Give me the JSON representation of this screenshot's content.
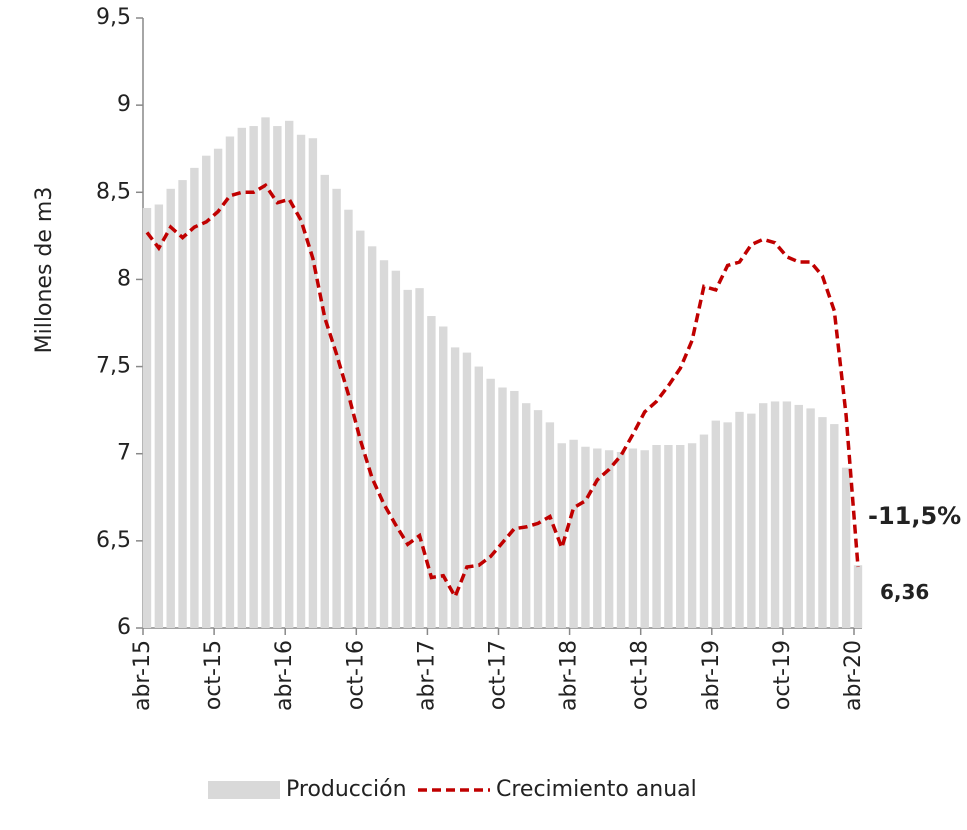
{
  "chart_data": {
    "type": "bar_line",
    "y_axis_label": "Millones de m3",
    "categories": [
      "abr-15",
      null,
      null,
      null,
      null,
      null,
      "oct-15",
      null,
      null,
      null,
      null,
      null,
      "abr-16",
      null,
      null,
      null,
      null,
      null,
      "oct-16",
      null,
      null,
      null,
      null,
      null,
      "abr-17",
      null,
      null,
      null,
      null,
      null,
      "oct-17",
      null,
      null,
      null,
      null,
      null,
      "abr-18",
      null,
      null,
      null,
      null,
      null,
      "oct-18",
      null,
      null,
      null,
      null,
      null,
      "abr-19",
      null,
      null,
      null,
      null,
      null,
      "oct-19",
      null,
      null,
      null,
      null,
      null,
      "abr-20"
    ],
    "series": [
      {
        "name": "Producción",
        "type": "bar",
        "color": "#d9d9d9",
        "values": [
          8.41,
          8.43,
          8.52,
          8.57,
          8.64,
          8.71,
          8.75,
          8.82,
          8.87,
          8.88,
          8.93,
          8.88,
          8.91,
          8.83,
          8.81,
          8.6,
          8.52,
          8.4,
          8.28,
          8.19,
          8.11,
          8.05,
          7.94,
          7.95,
          7.79,
          7.73,
          7.61,
          7.58,
          7.5,
          7.43,
          7.38,
          7.36,
          7.29,
          7.25,
          7.18,
          7.06,
          7.08,
          7.04,
          7.03,
          7.02,
          7.01,
          7.03,
          7.02,
          7.05,
          7.05,
          7.05,
          7.06,
          7.11,
          7.19,
          7.18,
          7.24,
          7.23,
          7.29,
          7.3,
          7.3,
          7.28,
          7.26,
          7.21,
          7.17,
          6.92,
          6.36
        ],
        "value_labels": [
          null,
          null,
          null,
          null,
          null,
          null,
          null,
          null,
          null,
          null,
          null,
          null,
          null,
          null,
          null,
          null,
          null,
          null,
          null,
          null,
          null,
          null,
          null,
          null,
          null,
          null,
          null,
          null,
          null,
          null,
          null,
          null,
          null,
          null,
          null,
          null,
          null,
          null,
          null,
          null,
          null,
          null,
          null,
          null,
          null,
          null,
          null,
          null,
          null,
          null,
          null,
          null,
          null,
          null,
          null,
          null,
          null,
          null,
          null,
          null,
          "6,36"
        ]
      },
      {
        "name": "Crecimiento anual",
        "type": "line",
        "axis": "y2",
        "color": "#c00000",
        "dashed": true,
        "values": [
          7.7,
          6.8,
          8.0,
          7.4,
          8.0,
          8.3,
          8.9,
          9.8,
          10.0,
          10.0,
          10.4,
          9.4,
          9.6,
          8.4,
          6.2,
          2.8,
          0.7,
          -1.6,
          -4.2,
          -6.4,
          -7.9,
          -9.1,
          -10.2,
          -9.7,
          -12.1,
          -12.0,
          -13.2,
          -11.5,
          -11.4,
          -10.9,
          -10.1,
          -9.3,
          -9.2,
          -9.0,
          -8.6,
          -10.4,
          -8.1,
          -7.7,
          -6.5,
          -5.9,
          -5.1,
          -3.9,
          -2.6,
          -2.0,
          -1.1,
          -0.1,
          1.5,
          4.6,
          4.4,
          5.8,
          6.0,
          7.0,
          7.3,
          7.1,
          6.3,
          6.0,
          6.0,
          5.2,
          3.2,
          -2.8,
          -11.5
        ],
        "value_labels": [
          null,
          null,
          null,
          null,
          null,
          null,
          null,
          null,
          null,
          null,
          null,
          null,
          null,
          null,
          null,
          null,
          null,
          null,
          null,
          null,
          null,
          null,
          null,
          null,
          null,
          null,
          null,
          null,
          null,
          null,
          null,
          null,
          null,
          null,
          null,
          null,
          null,
          null,
          null,
          null,
          null,
          null,
          null,
          null,
          null,
          null,
          null,
          null,
          null,
          null,
          null,
          null,
          null,
          null,
          null,
          null,
          null,
          null,
          null,
          null,
          "-11,5%"
        ]
      }
    ],
    "ylim": [
      6,
      9.5
    ],
    "yticks": [
      6,
      {
        "value": 6.5,
        "label": "6,5"
      },
      7,
      {
        "value": 7.5,
        "label": "7,5"
      },
      8,
      {
        "value": 8.5,
        "label": "8,5"
      },
      9,
      {
        "value": 9.5,
        "label": "9,5"
      }
    ],
    "y2lim": [
      -15,
      20
    ],
    "legend": "bottom"
  }
}
